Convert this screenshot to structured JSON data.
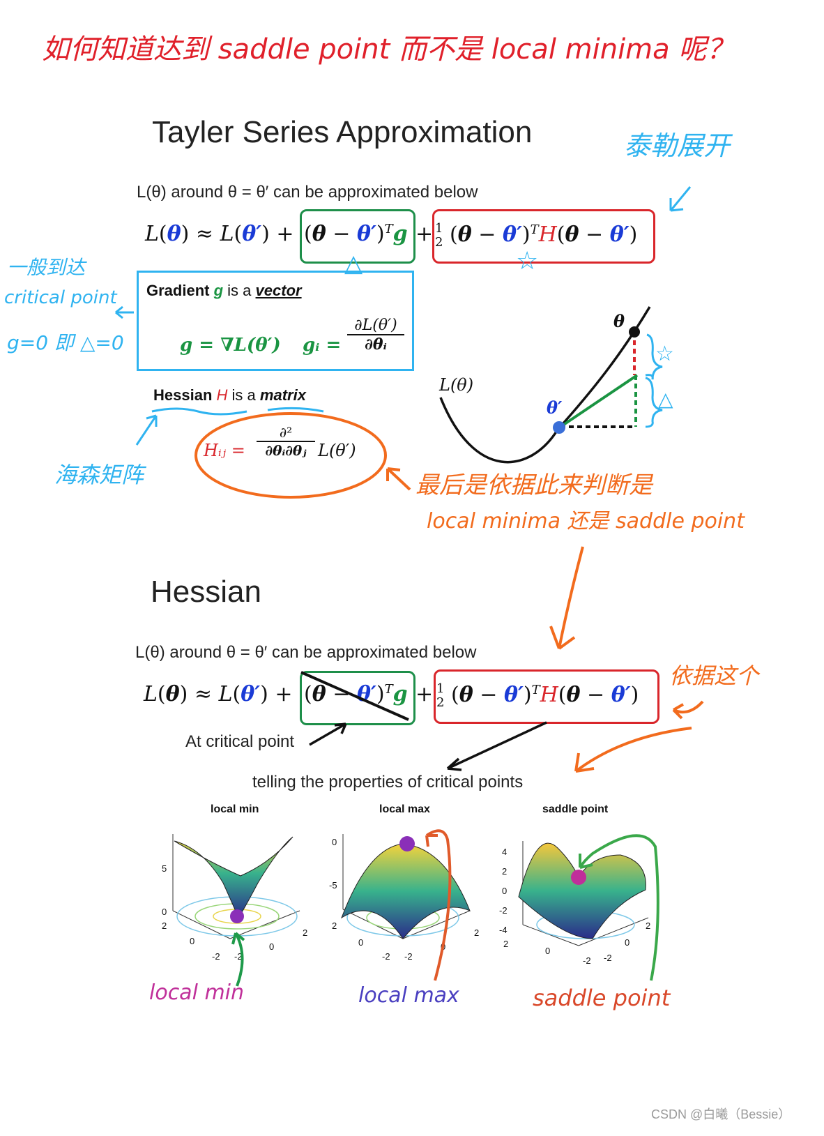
{
  "header_note": "如何知道达到 saddle point 而不是 local minima 呢？",
  "section1": {
    "title": "Tayler Series Approximation",
    "annotation_taylor": "泰勒展开",
    "intro": "L(θ) around θ = θ′ can be approximated below",
    "gradient": {
      "heading_prefix": "Gradient",
      "heading_symbol": "g",
      "heading_mid": "is a",
      "heading_word": "vector",
      "formula_left": "g = ∇L(θ′)",
      "formula_right_lhs": "gᵢ =",
      "formula_num": "∂L(θ′)",
      "formula_den": "∂θᵢ"
    },
    "hessian": {
      "heading_prefix": "Hessian",
      "heading_symbol": "H",
      "heading_mid": "is a",
      "heading_word": "matrix",
      "formula_lhs": "Hᵢⱼ =",
      "formula_num": "∂²",
      "formula_den": "∂θᵢ∂θⱼ",
      "formula_rhs": "L(θ′)"
    },
    "annotation_critical": [
      "一般到达",
      "critical point",
      "g=0 即 △=0"
    ],
    "annotation_hessian": "海森矩阵",
    "annotation_decide": [
      "最后是依据此来判断是",
      "local minima 还是 saddle point"
    ],
    "plot_labels": {
      "theta": "θ",
      "theta_prime": "θ′",
      "loss": "L(θ)"
    },
    "markers": {
      "triangle": "△",
      "star": "☆"
    }
  },
  "section2": {
    "title": "Hessian",
    "intro": "L(θ) around θ = θ′ can be approximated below",
    "at_critical": "At critical point",
    "telling": "telling the properties of critical points",
    "annotation_basis": "依据这个",
    "plots": [
      {
        "title": "local min",
        "caption": "local min",
        "yticks": [
          "5",
          "0"
        ],
        "xticks": [
          "2",
          "0",
          "-2",
          "-2",
          "0",
          "2"
        ]
      },
      {
        "title": "local max",
        "caption": "local max",
        "yticks": [
          "0",
          "-5"
        ],
        "xticks": [
          "2",
          "0",
          "-2",
          "-2",
          "0",
          "2"
        ]
      },
      {
        "title": "saddle point",
        "caption": "saddle point",
        "yticks": [
          "4",
          "2",
          "0",
          "-2",
          "-4"
        ],
        "xticks": [
          "2",
          "0",
          "-2",
          "-2",
          "0",
          "2"
        ]
      }
    ]
  },
  "watermark": "CSDN @白曦（Bessie）",
  "colors": {
    "handwriting_red": "#e0202a",
    "handwriting_blue": "#2fb3f0",
    "handwriting_orange": "#f26b1d",
    "param_blue": "#1a3bd6",
    "grad_green": "#1a9442",
    "hess_red": "#d9262b"
  }
}
